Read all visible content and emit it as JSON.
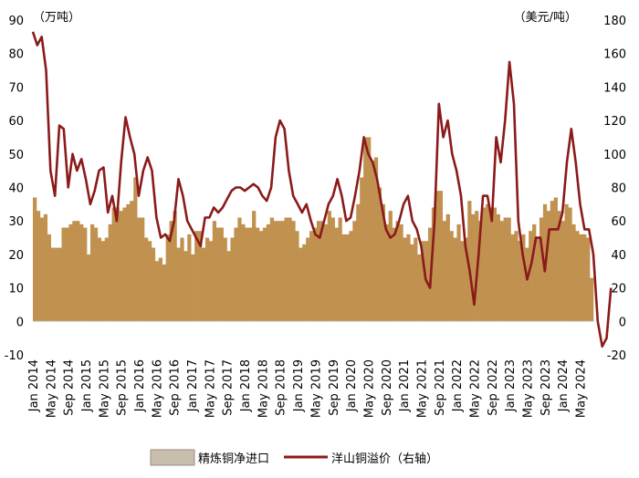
{
  "chart_data": {
    "type": "bar+line",
    "title": "",
    "left_axis": {
      "unit_label": "（万吨）",
      "ticks": [
        -10,
        0,
        10,
        20,
        30,
        40,
        50,
        60,
        70,
        80,
        90
      ],
      "range": [
        -10,
        90
      ]
    },
    "right_axis": {
      "unit_label": "（美元/吨）",
      "ticks": [
        -20,
        0,
        20,
        40,
        60,
        80,
        100,
        120,
        140,
        160,
        180
      ],
      "range": [
        -20,
        180
      ]
    },
    "x_tick_labels": [
      "Jan 2014",
      "May 2014",
      "Sep 2014",
      "Jan 2015",
      "May 2015",
      "Sep 2015",
      "Jan 2016",
      "May 2016",
      "Sep 2016",
      "Jan 2017",
      "May 2017",
      "Sep 2017",
      "Jan 2018",
      "May 2018",
      "Sep 2018",
      "Jan 2019",
      "May 2019",
      "Sep 2019",
      "Jan 2020",
      "May 2020",
      "Sep 2020",
      "Jan 2021",
      "May 2021",
      "Sep 2021",
      "Jan 2022",
      "May 2022",
      "Sep 2022",
      "Jan 2023",
      "May 2023",
      "Sep 2023",
      "Jan 2024",
      "May 2024"
    ],
    "x_start": "2014-01",
    "x_end": "2024-08",
    "legend": {
      "placement": "bottom-center"
    },
    "colors": {
      "bar": "#C0914F",
      "bar_legend": "#C8BEAD",
      "line": "#8B1A1A"
    },
    "series": [
      {
        "name": "精炼铜净进口",
        "type": "bar",
        "axis": "left",
        "values": [
          37,
          33,
          31,
          32,
          26,
          22,
          22,
          22,
          28,
          28,
          29,
          30,
          30,
          29,
          28,
          20,
          29,
          28,
          25,
          24,
          25,
          29,
          34,
          34,
          33,
          34,
          35,
          36,
          43,
          31,
          31,
          25,
          24,
          22,
          18,
          19,
          17,
          26,
          30,
          33,
          22,
          25,
          21,
          26,
          20,
          27,
          27,
          22,
          25,
          24,
          30,
          28,
          28,
          25,
          21,
          25,
          28,
          31,
          29,
          28,
          28,
          33,
          28,
          27,
          28,
          29,
          31,
          30,
          30,
          30,
          31,
          31,
          30,
          27,
          22,
          23,
          25,
          27,
          28,
          30,
          30,
          29,
          33,
          31,
          28,
          31,
          26,
          26,
          27,
          30,
          35,
          43,
          55,
          55,
          48,
          49,
          40,
          35,
          29,
          33,
          28,
          30,
          29,
          25,
          26,
          23,
          25,
          20,
          24,
          24,
          28,
          34,
          39,
          39,
          30,
          32,
          27,
          25,
          29,
          24,
          25,
          36,
          32,
          33,
          30,
          34,
          35,
          34,
          34,
          32,
          30,
          31,
          31,
          26,
          27,
          24,
          26,
          22,
          27,
          29,
          25,
          31,
          35,
          33,
          36,
          37,
          33,
          30,
          35,
          34,
          29,
          27,
          26,
          26,
          25,
          13
        ],
        "sample_interval_months": 0.82
      },
      {
        "name": "洋山铜溢价（右轴）",
        "type": "line",
        "axis": "right",
        "points": [
          [
            "2014-01",
            173
          ],
          [
            "2014-02",
            165
          ],
          [
            "2014-03",
            170
          ],
          [
            "2014-04",
            150
          ],
          [
            "2014-05",
            90
          ],
          [
            "2014-06",
            75
          ],
          [
            "2014-07",
            117
          ],
          [
            "2014-08",
            115
          ],
          [
            "2014-09",
            80
          ],
          [
            "2014-10",
            100
          ],
          [
            "2014-11",
            90
          ],
          [
            "2014-12",
            97
          ],
          [
            "2014-13",
            85
          ],
          [
            "2015-02",
            70
          ],
          [
            "2015-03",
            78
          ],
          [
            "2015-04",
            90
          ],
          [
            "2015-05",
            92
          ],
          [
            "2015-06",
            65
          ],
          [
            "2015-07",
            75
          ],
          [
            "2015-08",
            60
          ],
          [
            "2015-09",
            95
          ],
          [
            "2015-10",
            122
          ],
          [
            "2015-11",
            110
          ],
          [
            "2015-12",
            100
          ],
          [
            "2016-01",
            75
          ],
          [
            "2016-02",
            90
          ],
          [
            "2016-03",
            98
          ],
          [
            "2016-04",
            90
          ],
          [
            "2016-05",
            62
          ],
          [
            "2016-06",
            50
          ],
          [
            "2016-07",
            52
          ],
          [
            "2016-08",
            48
          ],
          [
            "2016-09",
            60
          ],
          [
            "2016-10",
            85
          ],
          [
            "2016-11",
            75
          ],
          [
            "2016-12",
            60
          ],
          [
            "2017-01",
            55
          ],
          [
            "2017-02",
            50
          ],
          [
            "2017-03",
            45
          ],
          [
            "2017-04",
            62
          ],
          [
            "2017-05",
            62
          ],
          [
            "2017-06",
            68
          ],
          [
            "2017-07",
            65
          ],
          [
            "2017-08",
            68
          ],
          [
            "2017-09",
            73
          ],
          [
            "2017-10",
            78
          ],
          [
            "2017-11",
            80
          ],
          [
            "2017-12",
            80
          ],
          [
            "2018-01",
            78
          ],
          [
            "2018-02",
            80
          ],
          [
            "2018-03",
            82
          ],
          [
            "2018-04",
            80
          ],
          [
            "2018-05",
            75
          ],
          [
            "2018-06",
            72
          ],
          [
            "2018-07",
            80
          ],
          [
            "2018-08",
            110
          ],
          [
            "2018-09",
            120
          ],
          [
            "2018-10",
            115
          ],
          [
            "2018-11",
            90
          ],
          [
            "2018-12",
            75
          ],
          [
            "2019-01",
            70
          ],
          [
            "2019-02",
            65
          ],
          [
            "2019-03",
            70
          ],
          [
            "2019-04",
            60
          ],
          [
            "2019-05",
            52
          ],
          [
            "2019-06",
            50
          ],
          [
            "2019-07",
            60
          ],
          [
            "2019-08",
            70
          ],
          [
            "2019-09",
            75
          ],
          [
            "2019-10",
            85
          ],
          [
            "2019-11",
            75
          ],
          [
            "2019-12",
            60
          ],
          [
            "2020-01",
            62
          ],
          [
            "2020-02",
            75
          ],
          [
            "2020-03",
            90
          ],
          [
            "2020-04",
            110
          ],
          [
            "2020-05",
            100
          ],
          [
            "2020-06",
            95
          ],
          [
            "2020-07",
            85
          ],
          [
            "2020-08",
            70
          ],
          [
            "2020-09",
            55
          ],
          [
            "2020-10",
            50
          ],
          [
            "2020-11",
            52
          ],
          [
            "2020-12",
            60
          ],
          [
            "2021-01",
            70
          ],
          [
            "2021-02",
            75
          ],
          [
            "2021-03",
            60
          ],
          [
            "2021-04",
            55
          ],
          [
            "2021-05",
            45
          ],
          [
            "2021-06",
            25
          ],
          [
            "2021-07",
            20
          ],
          [
            "2021-08",
            60
          ],
          [
            "2021-09",
            130
          ],
          [
            "2021-10",
            110
          ],
          [
            "2021-11",
            120
          ],
          [
            "2021-12",
            100
          ],
          [
            "2022-01",
            90
          ],
          [
            "2022-02",
            75
          ],
          [
            "2022-03",
            45
          ],
          [
            "2022-04",
            30
          ],
          [
            "2022-05",
            10
          ],
          [
            "2022-06",
            40
          ],
          [
            "2022-07",
            75
          ],
          [
            "2022-08",
            75
          ],
          [
            "2022-09",
            60
          ],
          [
            "2022-10",
            110
          ],
          [
            "2022-11",
            95
          ],
          [
            "2022-12",
            120
          ],
          [
            "2023-01",
            155
          ],
          [
            "2023-02",
            130
          ],
          [
            "2023-03",
            60
          ],
          [
            "2023-04",
            40
          ],
          [
            "2023-05",
            25
          ],
          [
            "2023-06",
            35
          ],
          [
            "2023-07",
            50
          ],
          [
            "2023-08",
            50
          ],
          [
            "2023-09",
            30
          ],
          [
            "2023-10",
            55
          ],
          [
            "2023-11",
            55
          ],
          [
            "2023-12",
            55
          ],
          [
            "2024-01",
            65
          ],
          [
            "2024-02",
            95
          ],
          [
            "2024-03",
            115
          ],
          [
            "2024-04",
            95
          ],
          [
            "2024-05",
            70
          ],
          [
            "2024-06",
            55
          ],
          [
            "2024-07",
            55
          ],
          [
            "2024-08",
            40
          ],
          [
            "2024-09",
            0
          ],
          [
            "2024-10",
            -15
          ],
          [
            "2024-11",
            -10
          ],
          [
            "2024-12",
            20
          ]
        ]
      }
    ]
  }
}
